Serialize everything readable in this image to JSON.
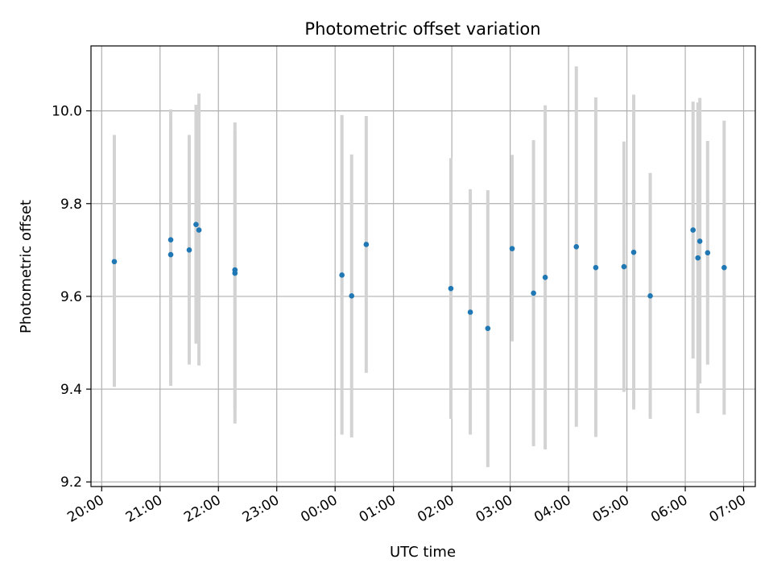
{
  "chart_data": {
    "type": "scatter",
    "title": "Photometric offset variation",
    "xlabel": "UTC time",
    "ylabel": "Photometric offset",
    "x_tick_labels": [
      "20:00",
      "21:00",
      "22:00",
      "23:00",
      "00:00",
      "01:00",
      "02:00",
      "03:00",
      "04:00",
      "05:00",
      "06:00",
      "07:00"
    ],
    "x_ticks": [
      "2000-01-01T20:00",
      "2000-01-01T21:00",
      "2000-01-01T22:00",
      "2000-01-01T23:00",
      "2000-01-02T00:00",
      "2000-01-02T01:00",
      "2000-01-02T02:00",
      "2000-01-02T03:00",
      "2000-01-02T04:00",
      "2000-01-02T05:00",
      "2000-01-02T06:00",
      "2000-01-02T07:00"
    ],
    "xlim": [
      "2000-01-01T19:49",
      "2000-01-02T07:12"
    ],
    "y_ticks": [
      9.2,
      9.4,
      9.6,
      9.8,
      10.0
    ],
    "y_tick_labels": [
      "9.2",
      "9.4",
      "9.6",
      "9.8",
      "10.0"
    ],
    "ylim": [
      9.19,
      10.14
    ],
    "grid": true,
    "marker_color": "#1f77b4",
    "errorbar_color": "#d3d3d3",
    "points": [
      {
        "x": "2000-01-01T20:13",
        "y": 9.675,
        "ylow": 9.405,
        "yhigh": 9.948
      },
      {
        "x": "2000-01-01T21:11",
        "y": 9.722,
        "ylow": 9.472,
        "yhigh": 9.972
      },
      {
        "x": "2000-01-01T21:11",
        "y": 9.69,
        "ylow": 9.407,
        "yhigh": 10.003
      },
      {
        "x": "2000-01-01T21:30",
        "y": 9.7,
        "ylow": 9.453,
        "yhigh": 9.948
      },
      {
        "x": "2000-01-01T21:37",
        "y": 9.755,
        "ylow": 9.498,
        "yhigh": 10.013
      },
      {
        "x": "2000-01-01T21:40",
        "y": 9.743,
        "ylow": 9.451,
        "yhigh": 10.037
      },
      {
        "x": "2000-01-01T22:17",
        "y": 9.657,
        "ylow": 9.357,
        "yhigh": 9.957
      },
      {
        "x": "2000-01-01T22:17",
        "y": 9.65,
        "ylow": 9.326,
        "yhigh": 9.975
      },
      {
        "x": "2000-01-02T00:07",
        "y": 9.646,
        "ylow": 9.302,
        "yhigh": 9.991
      },
      {
        "x": "2000-01-02T00:17",
        "y": 9.601,
        "ylow": 9.296,
        "yhigh": 9.906
      },
      {
        "x": "2000-01-02T00:32",
        "y": 9.712,
        "ylow": 9.435,
        "yhigh": 9.989
      },
      {
        "x": "2000-01-02T01:59",
        "y": 9.617,
        "ylow": 9.336,
        "yhigh": 9.898
      },
      {
        "x": "2000-01-02T02:19",
        "y": 9.566,
        "ylow": 9.302,
        "yhigh": 9.831
      },
      {
        "x": "2000-01-02T02:37",
        "y": 9.531,
        "ylow": 9.232,
        "yhigh": 9.829
      },
      {
        "x": "2000-01-02T03:02",
        "y": 9.703,
        "ylow": 9.503,
        "yhigh": 9.905
      },
      {
        "x": "2000-01-02T03:24",
        "y": 9.607,
        "ylow": 9.277,
        "yhigh": 9.937
      },
      {
        "x": "2000-01-02T03:36",
        "y": 9.641,
        "ylow": 9.27,
        "yhigh": 10.012
      },
      {
        "x": "2000-01-02T04:08",
        "y": 9.707,
        "ylow": 9.319,
        "yhigh": 10.096
      },
      {
        "x": "2000-01-02T04:28",
        "y": 9.662,
        "ylow": 9.297,
        "yhigh": 10.029
      },
      {
        "x": "2000-01-02T04:57",
        "y": 9.664,
        "ylow": 9.394,
        "yhigh": 9.934
      },
      {
        "x": "2000-01-02T05:07",
        "y": 9.695,
        "ylow": 9.356,
        "yhigh": 10.035
      },
      {
        "x": "2000-01-02T05:24",
        "y": 9.601,
        "ylow": 9.336,
        "yhigh": 9.866
      },
      {
        "x": "2000-01-02T06:08",
        "y": 9.743,
        "ylow": 9.466,
        "yhigh": 10.02
      },
      {
        "x": "2000-01-02T06:13",
        "y": 9.683,
        "ylow": 9.348,
        "yhigh": 10.018
      },
      {
        "x": "2000-01-02T06:15",
        "y": 9.719,
        "ylow": 9.412,
        "yhigh": 10.028
      },
      {
        "x": "2000-01-02T06:23",
        "y": 9.694,
        "ylow": 9.453,
        "yhigh": 9.935
      },
      {
        "x": "2000-01-02T06:40",
        "y": 9.662,
        "ylow": 9.345,
        "yhigh": 9.979
      }
    ]
  }
}
